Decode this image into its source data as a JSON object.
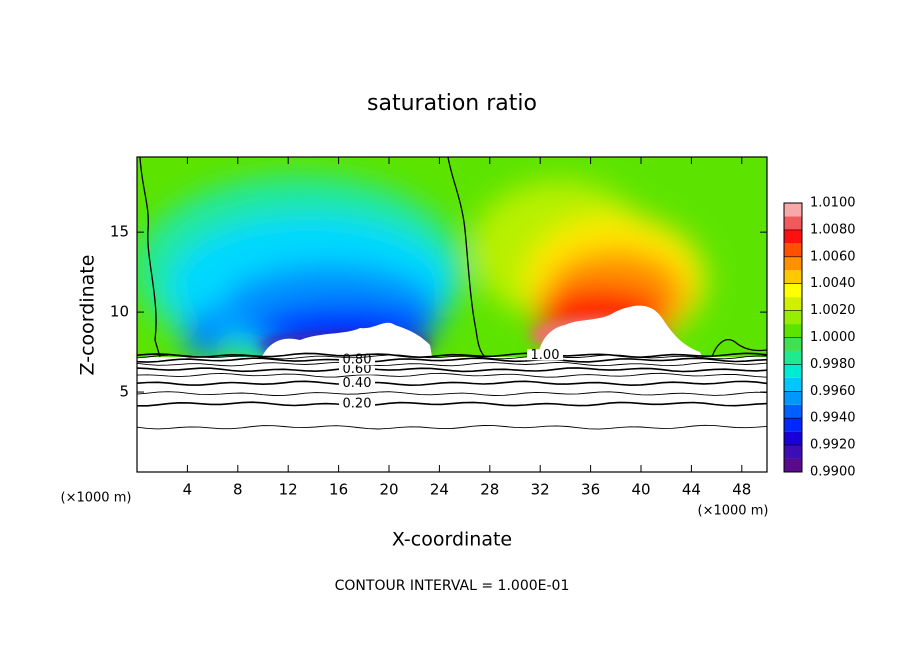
{
  "chart_data": {
    "type": "contour",
    "title": "saturation ratio",
    "x_label": "X-coordinate",
    "y_label": "Z-coordinate",
    "x_unit_label": "(×1000 m)",
    "y_unit_label": "(×1000 m)",
    "footnote": "CONTOUR INTERVAL = 1.000E-01",
    "xlim": [
      0,
      50
    ],
    "ylim": [
      0,
      19.7
    ],
    "xticks": [
      4,
      8,
      12,
      16,
      20,
      24,
      28,
      32,
      36,
      40,
      44,
      48
    ],
    "yticks": [
      5,
      10,
      15
    ],
    "contours": [
      {
        "level": 0.1,
        "z": 2.8
      },
      {
        "level": 0.2,
        "label": "0.20",
        "z": 4.25
      },
      {
        "level": 0.3,
        "z": 4.9
      },
      {
        "level": 0.4,
        "label": "0.40",
        "z": 5.55
      },
      {
        "level": 0.5,
        "z": 6.05
      },
      {
        "level": 0.6,
        "label": "0.60",
        "z": 6.4
      },
      {
        "level": 0.7,
        "z": 6.75
      },
      {
        "level": 0.8,
        "label": "0.80",
        "z": 7.0
      },
      {
        "level": 0.9,
        "z": 7.2
      },
      {
        "level": 1.0,
        "label": "1.00",
        "z": 7.3
      }
    ],
    "colorbar": {
      "levels": [
        0.99,
        0.991,
        0.992,
        0.993,
        0.994,
        0.995,
        0.996,
        0.997,
        0.998,
        0.999,
        1.0,
        1.001,
        1.002,
        1.003,
        1.004,
        1.005,
        1.006,
        1.007,
        1.008,
        1.009,
        1.01
      ],
      "colors": [
        "#5a0a8c",
        "#3c0cb4",
        "#1800d8",
        "#0028ff",
        "#0060ff",
        "#0098ff",
        "#00c8ff",
        "#00ecd0",
        "#20ea90",
        "#40e050",
        "#5ce400",
        "#98ee00",
        "#d0f000",
        "#ffff00",
        "#ffc800",
        "#ff9000",
        "#ff5000",
        "#ff1010",
        "#f05a5a",
        "#f8a8a8"
      ],
      "ticks": [
        {
          "value": 0.99,
          "label": "0.9900"
        },
        {
          "value": 0.992,
          "label": "0.9920"
        },
        {
          "value": 0.994,
          "label": "0.9940"
        },
        {
          "value": 0.996,
          "label": "0.9960"
        },
        {
          "value": 0.998,
          "label": "0.9980"
        },
        {
          "value": 1.0,
          "label": "1.0000"
        },
        {
          "value": 1.002,
          "label": "1.0020"
        },
        {
          "value": 1.004,
          "label": "1.0040"
        },
        {
          "value": 1.006,
          "label": "1.0060"
        },
        {
          "value": 1.008,
          "label": "1.0080"
        },
        {
          "value": 1.01,
          "label": "1.0100"
        }
      ]
    }
  }
}
